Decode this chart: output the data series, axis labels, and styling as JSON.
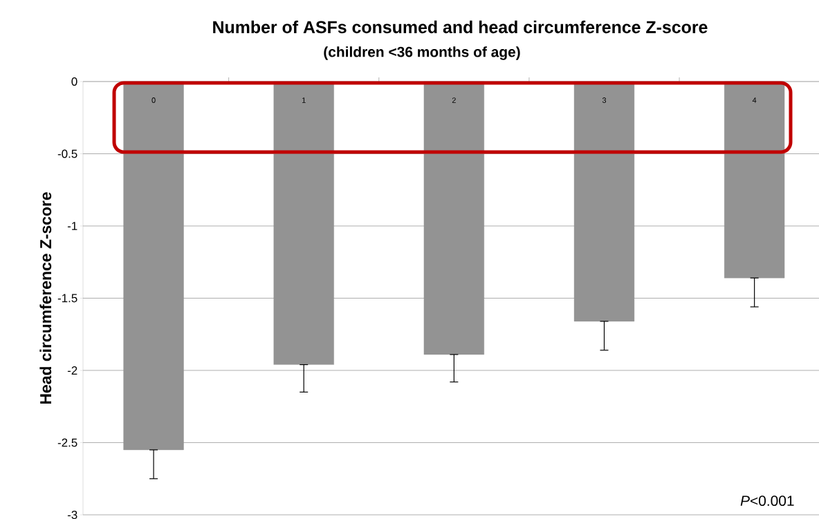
{
  "chart_data": {
    "type": "bar",
    "title": "Number of ASFs consumed and head circumference Z-score",
    "subtitle": "(children <36 months of age)",
    "ylabel": "Head circumference Z-score",
    "categories": [
      "0",
      "1",
      "2",
      "3",
      "4"
    ],
    "values": [
      -2.55,
      -1.96,
      -1.89,
      -1.66,
      -1.36
    ],
    "errors": [
      [
        -2.75,
        -2.55
      ],
      [
        -2.15,
        -1.96
      ],
      [
        -2.08,
        -1.89
      ],
      [
        -1.86,
        -1.66
      ],
      [
        -1.56,
        -1.36
      ]
    ],
    "color": "#939393",
    "ylim": [
      -3,
      0
    ],
    "yticks": [
      -3,
      -2.5,
      -2,
      -1.5,
      -1,
      -0.5,
      0
    ],
    "grid": "y",
    "annotations": [
      "*P*<0.001"
    ]
  }
}
